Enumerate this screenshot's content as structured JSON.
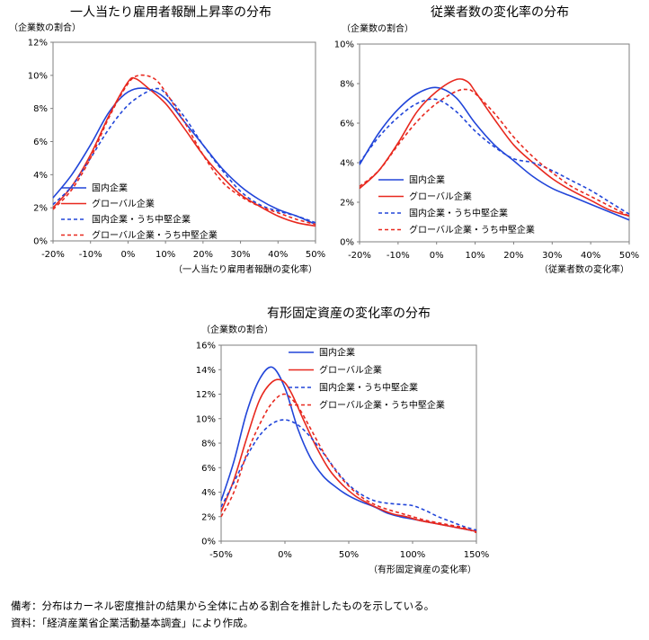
{
  "notes": {
    "line1": "備考：分布はカーネル密度推計の結果から全体に占める割合を推計したものを示している。",
    "line2": "資料：「経済産業省企業活動基本調査」により作成。"
  },
  "colors": {
    "blue": "#2145d9",
    "red": "#e8281e"
  },
  "chart_data": [
    {
      "type": "line",
      "title": "一人当たり雇用者報酬上昇率の分布",
      "ylabel": "（企業数の割合）",
      "xlabel": "（一人当たり雇用者報酬の変化率）",
      "xlim": [
        -20,
        50
      ],
      "ylim": [
        0,
        12
      ],
      "x_ticks": [
        "-20%",
        "-10%",
        "0%",
        "10%",
        "20%",
        "30%",
        "40%",
        "50%"
      ],
      "y_ticks": [
        "0%",
        "2%",
        "4%",
        "6%",
        "8%",
        "10%",
        "12%"
      ],
      "legend": [
        "国内企業",
        "グローバル企業",
        "国内企業・うち中堅企業",
        "グローバル企業・うち中堅企業"
      ],
      "series": [
        {
          "name": "国内企業",
          "color": "#2145d9",
          "dashed": false,
          "points": [
            [
              -20,
              2.6
            ],
            [
              -15,
              4.0
            ],
            [
              -10,
              5.8
            ],
            [
              -5,
              7.8
            ],
            [
              0,
              9.0
            ],
            [
              5,
              9.2
            ],
            [
              10,
              8.6
            ],
            [
              15,
              7.2
            ],
            [
              20,
              5.8
            ],
            [
              25,
              4.4
            ],
            [
              30,
              3.3
            ],
            [
              35,
              2.5
            ],
            [
              40,
              1.9
            ],
            [
              45,
              1.5
            ],
            [
              50,
              1.0
            ]
          ]
        },
        {
          "name": "グローバル企業",
          "color": "#e8281e",
          "dashed": false,
          "points": [
            [
              -20,
              2.0
            ],
            [
              -15,
              3.3
            ],
            [
              -10,
              5.2
            ],
            [
              -5,
              7.6
            ],
            [
              0,
              9.6
            ],
            [
              2,
              9.8
            ],
            [
              5,
              9.3
            ],
            [
              10,
              8.3
            ],
            [
              15,
              6.8
            ],
            [
              20,
              5.2
            ],
            [
              25,
              3.9
            ],
            [
              30,
              2.8
            ],
            [
              35,
              2.1
            ],
            [
              40,
              1.5
            ],
            [
              45,
              1.1
            ],
            [
              50,
              0.9
            ]
          ]
        },
        {
          "name": "国内企業・うち中堅企業",
          "color": "#2145d9",
          "dashed": true,
          "points": [
            [
              -20,
              2.2
            ],
            [
              -15,
              3.3
            ],
            [
              -10,
              5.0
            ],
            [
              -5,
              6.8
            ],
            [
              0,
              8.2
            ],
            [
              5,
              9.0
            ],
            [
              8,
              9.2
            ],
            [
              10,
              8.9
            ],
            [
              15,
              7.5
            ],
            [
              20,
              5.8
            ],
            [
              25,
              4.3
            ],
            [
              30,
              3.0
            ],
            [
              35,
              2.2
            ],
            [
              40,
              1.8
            ],
            [
              45,
              1.5
            ],
            [
              50,
              1.1
            ]
          ]
        },
        {
          "name": "グローバル企業・うち中堅企業",
          "color": "#e8281e",
          "dashed": true,
          "points": [
            [
              -20,
              1.9
            ],
            [
              -15,
              3.1
            ],
            [
              -10,
              5.0
            ],
            [
              -5,
              7.5
            ],
            [
              0,
              9.5
            ],
            [
              3,
              10.0
            ],
            [
              7,
              9.8
            ],
            [
              10,
              9.0
            ],
            [
              15,
              7.2
            ],
            [
              20,
              5.2
            ],
            [
              25,
              3.6
            ],
            [
              30,
              2.7
            ],
            [
              35,
              2.1
            ],
            [
              40,
              1.7
            ],
            [
              45,
              1.3
            ],
            [
              50,
              1.0
            ]
          ]
        }
      ]
    },
    {
      "type": "line",
      "title": "従業者数の変化率の分布",
      "ylabel": "（企業数の割合）",
      "xlabel": "（従業者数の変化率）",
      "xlim": [
        -20,
        50
      ],
      "ylim": [
        0,
        10
      ],
      "x_ticks": [
        "-20%",
        "-10%",
        "0%",
        "10%",
        "20%",
        "30%",
        "40%",
        "50%"
      ],
      "y_ticks": [
        "0%",
        "2%",
        "4%",
        "6%",
        "8%",
        "10%"
      ],
      "legend": [
        "国内企業",
        "グローバル企業",
        "国内企業・うち中堅企業",
        "グローバル企業・うち中堅企業"
      ],
      "series": [
        {
          "name": "国内企業",
          "color": "#2145d9",
          "dashed": false,
          "points": [
            [
              -20,
              3.9
            ],
            [
              -15,
              5.5
            ],
            [
              -10,
              6.7
            ],
            [
              -5,
              7.5
            ],
            [
              0,
              7.8
            ],
            [
              5,
              7.3
            ],
            [
              10,
              6.0
            ],
            [
              15,
              4.9
            ],
            [
              20,
              4.1
            ],
            [
              25,
              3.3
            ],
            [
              30,
              2.7
            ],
            [
              35,
              2.3
            ],
            [
              40,
              1.9
            ],
            [
              45,
              1.5
            ],
            [
              50,
              1.1
            ]
          ]
        },
        {
          "name": "グローバル企業",
          "color": "#e8281e",
          "dashed": false,
          "points": [
            [
              -20,
              2.7
            ],
            [
              -15,
              3.6
            ],
            [
              -10,
              5.0
            ],
            [
              -5,
              6.6
            ],
            [
              0,
              7.6
            ],
            [
              5,
              8.2
            ],
            [
              8,
              8.1
            ],
            [
              10,
              7.6
            ],
            [
              15,
              6.2
            ],
            [
              20,
              4.9
            ],
            [
              25,
              4.0
            ],
            [
              30,
              3.2
            ],
            [
              35,
              2.6
            ],
            [
              40,
              2.1
            ],
            [
              45,
              1.6
            ],
            [
              50,
              1.3
            ]
          ]
        },
        {
          "name": "国内企業・うち中堅企業",
          "color": "#2145d9",
          "dashed": true,
          "points": [
            [
              -20,
              4.0
            ],
            [
              -15,
              5.3
            ],
            [
              -10,
              6.3
            ],
            [
              -5,
              7.0
            ],
            [
              0,
              7.2
            ],
            [
              5,
              6.6
            ],
            [
              10,
              5.6
            ],
            [
              15,
              4.8
            ],
            [
              20,
              4.2
            ],
            [
              25,
              4.0
            ],
            [
              30,
              3.6
            ],
            [
              35,
              3.1
            ],
            [
              40,
              2.6
            ],
            [
              45,
              2.0
            ],
            [
              50,
              1.4
            ]
          ]
        },
        {
          "name": "グローバル企業・うち中堅企業",
          "color": "#e8281e",
          "dashed": true,
          "points": [
            [
              -20,
              2.8
            ],
            [
              -15,
              3.6
            ],
            [
              -10,
              4.9
            ],
            [
              -5,
              6.1
            ],
            [
              0,
              7.0
            ],
            [
              5,
              7.6
            ],
            [
              8,
              7.7
            ],
            [
              10,
              7.5
            ],
            [
              15,
              6.5
            ],
            [
              20,
              5.3
            ],
            [
              25,
              4.3
            ],
            [
              30,
              3.5
            ],
            [
              35,
              2.8
            ],
            [
              40,
              2.3
            ],
            [
              45,
              1.8
            ],
            [
              50,
              1.3
            ]
          ]
        }
      ]
    },
    {
      "type": "line",
      "title": "有形固定資産の変化率の分布",
      "ylabel": "（企業数の割合）",
      "xlabel": "（有形固定資産の変化率）",
      "xlim": [
        -50,
        150
      ],
      "ylim": [
        0,
        16
      ],
      "x_ticks": [
        "-50%",
        "0%",
        "50%",
        "100%",
        "150%"
      ],
      "y_ticks": [
        "0%",
        "2%",
        "4%",
        "6%",
        "8%",
        "10%",
        "12%",
        "14%",
        "16%"
      ],
      "legend": [
        "国内企業",
        "グローバル企業",
        "国内企業・うち中堅企業",
        "グローバル企業・うち中堅企業"
      ],
      "series": [
        {
          "name": "国内企業",
          "color": "#2145d9",
          "dashed": false,
          "points": [
            [
              -50,
              3.3
            ],
            [
              -40,
              6.5
            ],
            [
              -30,
              10.5
            ],
            [
              -20,
              13.2
            ],
            [
              -10,
              14.2
            ],
            [
              0,
              12.5
            ],
            [
              10,
              9.2
            ],
            [
              20,
              6.8
            ],
            [
              30,
              5.3
            ],
            [
              40,
              4.4
            ],
            [
              50,
              3.7
            ],
            [
              60,
              3.2
            ],
            [
              70,
              2.8
            ],
            [
              80,
              2.3
            ],
            [
              90,
              2.0
            ],
            [
              100,
              1.8
            ],
            [
              110,
              1.6
            ],
            [
              120,
              1.4
            ],
            [
              130,
              1.2
            ],
            [
              140,
              1.0
            ],
            [
              150,
              0.8
            ]
          ]
        },
        {
          "name": "グローバル企業",
          "color": "#e8281e",
          "dashed": false,
          "points": [
            [
              -50,
              2.4
            ],
            [
              -40,
              5.0
            ],
            [
              -30,
              8.4
            ],
            [
              -20,
              11.5
            ],
            [
              -10,
              13.0
            ],
            [
              -2,
              13.1
            ],
            [
              5,
              12.1
            ],
            [
              15,
              9.8
            ],
            [
              25,
              7.6
            ],
            [
              35,
              5.8
            ],
            [
              45,
              4.6
            ],
            [
              55,
              3.7
            ],
            [
              65,
              3.1
            ],
            [
              75,
              2.6
            ],
            [
              85,
              2.2
            ],
            [
              95,
              2.0
            ],
            [
              105,
              1.7
            ],
            [
              115,
              1.5
            ],
            [
              125,
              1.3
            ],
            [
              135,
              1.1
            ],
            [
              150,
              0.8
            ]
          ]
        },
        {
          "name": "国内企業・うち中堅企業",
          "color": "#2145d9",
          "dashed": true,
          "points": [
            [
              -50,
              2.8
            ],
            [
              -40,
              4.8
            ],
            [
              -30,
              6.9
            ],
            [
              -20,
              8.6
            ],
            [
              -10,
              9.6
            ],
            [
              0,
              9.9
            ],
            [
              10,
              9.5
            ],
            [
              20,
              8.5
            ],
            [
              30,
              7.2
            ],
            [
              40,
              5.8
            ],
            [
              50,
              4.6
            ],
            [
              60,
              3.8
            ],
            [
              70,
              3.3
            ],
            [
              80,
              3.1
            ],
            [
              90,
              3.0
            ],
            [
              100,
              2.9
            ],
            [
              110,
              2.5
            ],
            [
              120,
              2.0
            ],
            [
              130,
              1.6
            ],
            [
              140,
              1.2
            ],
            [
              150,
              0.9
            ]
          ]
        },
        {
          "name": "グローバル企業・うち中堅企業",
          "color": "#e8281e",
          "dashed": true,
          "points": [
            [
              -50,
              2.0
            ],
            [
              -40,
              4.0
            ],
            [
              -30,
              7.1
            ],
            [
              -20,
              9.5
            ],
            [
              -10,
              11.3
            ],
            [
              0,
              12.0
            ],
            [
              10,
              11.0
            ],
            [
              20,
              9.2
            ],
            [
              30,
              7.3
            ],
            [
              40,
              5.7
            ],
            [
              50,
              4.5
            ],
            [
              60,
              3.6
            ],
            [
              70,
              3.0
            ],
            [
              80,
              2.6
            ],
            [
              90,
              2.3
            ],
            [
              100,
              2.0
            ],
            [
              110,
              1.7
            ],
            [
              120,
              1.5
            ],
            [
              130,
              1.3
            ],
            [
              140,
              1.1
            ],
            [
              150,
              0.7
            ]
          ]
        }
      ]
    }
  ]
}
